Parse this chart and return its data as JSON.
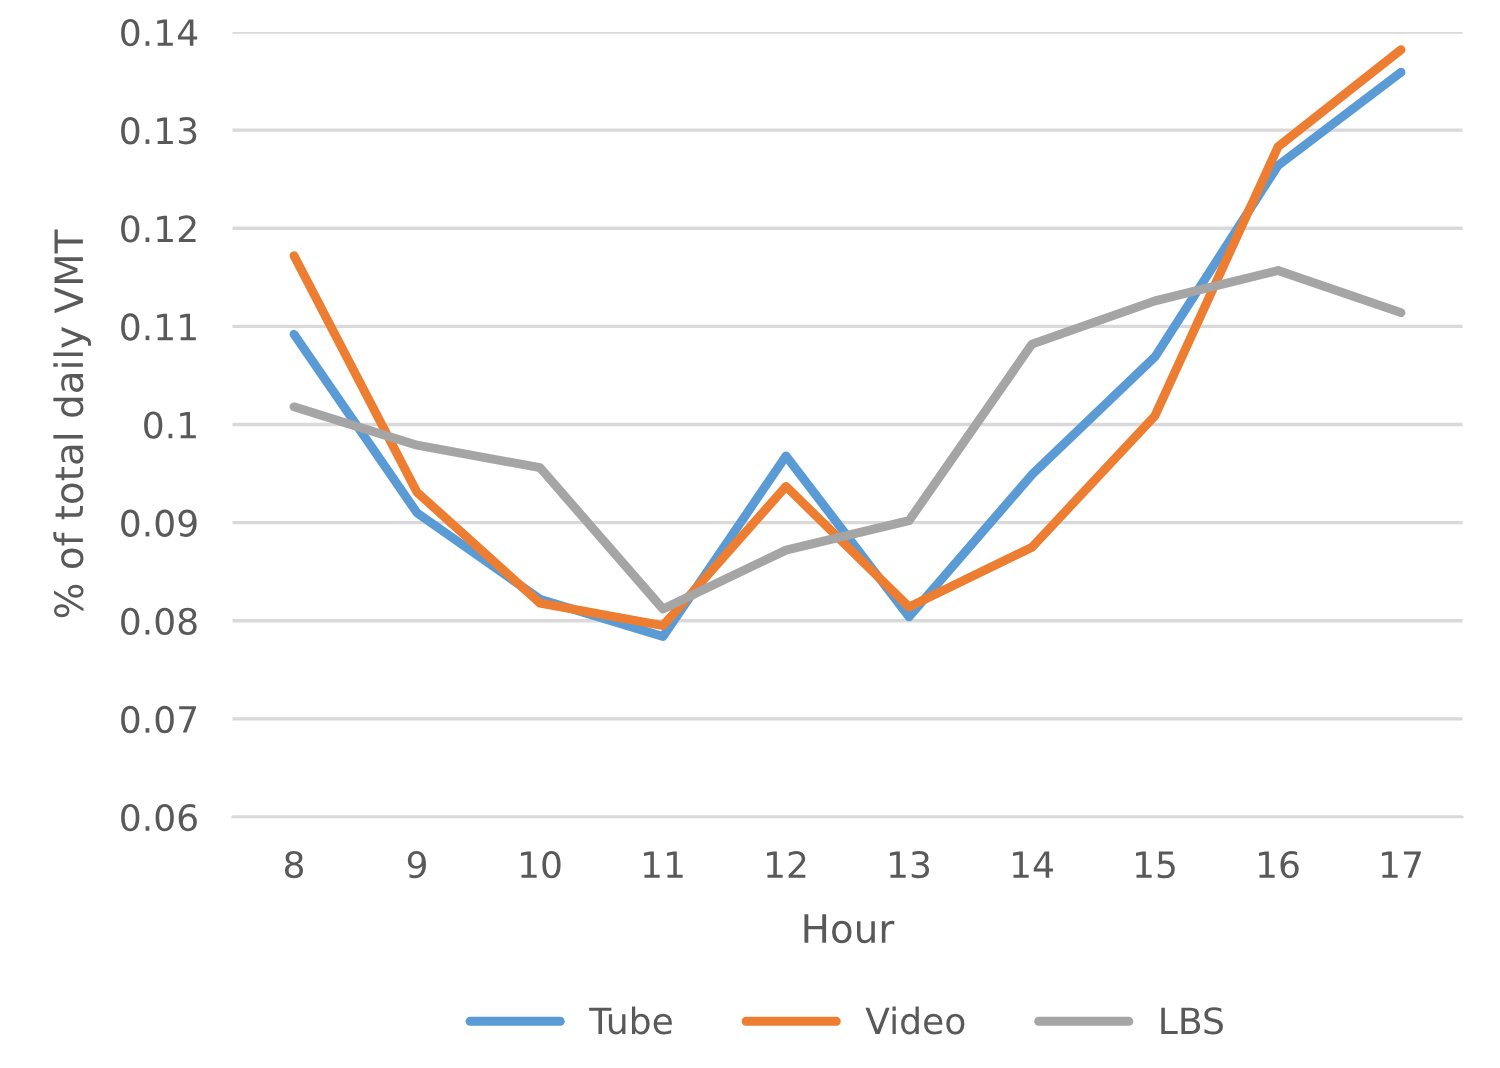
{
  "chart_data": {
    "type": "line",
    "xlabel": "Hour",
    "ylabel": "% of total daily VMT",
    "categories": [
      "8",
      "9",
      "10",
      "11",
      "12",
      "13",
      "14",
      "15",
      "16",
      "17"
    ],
    "series": [
      {
        "name": "Tube",
        "color": "#5b9bd5",
        "values": [
          0.1092,
          0.091,
          0.0822,
          0.0784,
          0.0968,
          0.0804,
          0.0949,
          0.1069,
          0.1264,
          0.1359
        ]
      },
      {
        "name": "Video",
        "color": "#ed7d31",
        "values": [
          0.1172,
          0.0931,
          0.0818,
          0.0795,
          0.0937,
          0.0814,
          0.0875,
          0.1009,
          0.1283,
          0.1382
        ]
      },
      {
        "name": "LBS",
        "color": "#a5a5a5",
        "values": [
          0.1018,
          0.0979,
          0.0956,
          0.0812,
          0.0872,
          0.0902,
          0.1082,
          0.1126,
          0.1157,
          0.1114
        ]
      }
    ],
    "ylim": [
      0.06,
      0.14
    ],
    "yticks": [
      0.06,
      0.07,
      0.08,
      0.09,
      {
        "value": 0.1,
        "label": "0.1"
      },
      0.11,
      0.12,
      0.13,
      0.14
    ],
    "grid": "y",
    "legend": "bottom",
    "marker": "none",
    "line_style": "solid"
  }
}
